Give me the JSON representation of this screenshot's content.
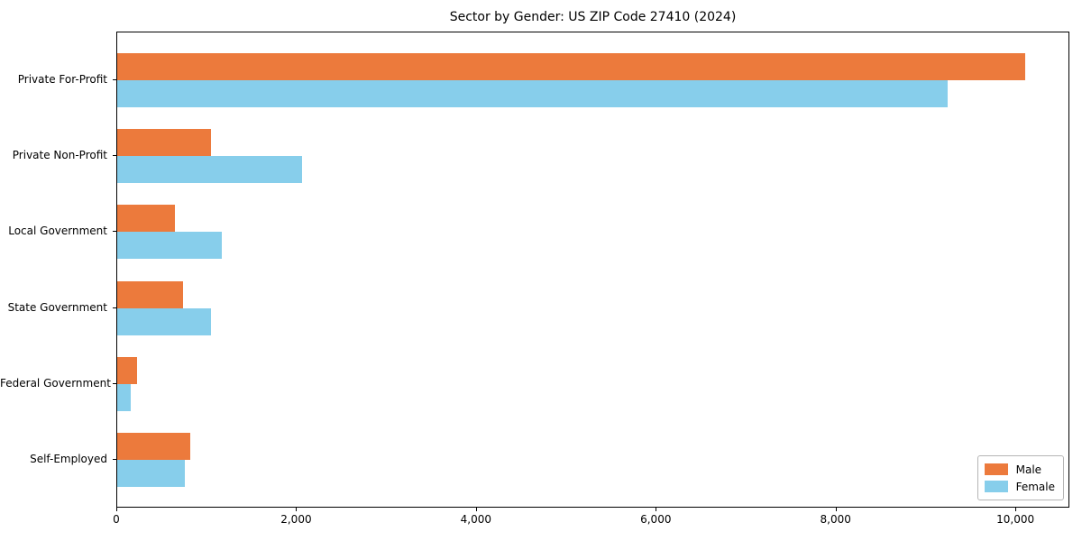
{
  "chart_data": {
    "type": "bar",
    "orientation": "horizontal",
    "title": "Sector by Gender: US ZIP Code 27410 (2024)",
    "categories": [
      "Private For-Profit",
      "Private Non-Profit",
      "Local Government",
      "State Government",
      "Federal Government",
      "Self-Employed"
    ],
    "series": [
      {
        "name": "Male",
        "color": "#ec7a3c",
        "values": [
          10100,
          1040,
          640,
          730,
          220,
          810
        ]
      },
      {
        "name": "Female",
        "color": "#87ceeb",
        "values": [
          9240,
          2060,
          1160,
          1040,
          150,
          750
        ]
      }
    ],
    "xlabel": "",
    "ylabel": "",
    "xlim": [
      0,
      10600
    ],
    "xticks": [
      {
        "value": 0,
        "label": "0"
      },
      {
        "value": 2000,
        "label": "2,000"
      },
      {
        "value": 4000,
        "label": "4,000"
      },
      {
        "value": 6000,
        "label": "6,000"
      },
      {
        "value": 8000,
        "label": "8,000"
      },
      {
        "value": 10000,
        "label": "10,000"
      }
    ],
    "grid": false,
    "legend": {
      "position": "lower right",
      "items": [
        "Male",
        "Female"
      ]
    }
  }
}
